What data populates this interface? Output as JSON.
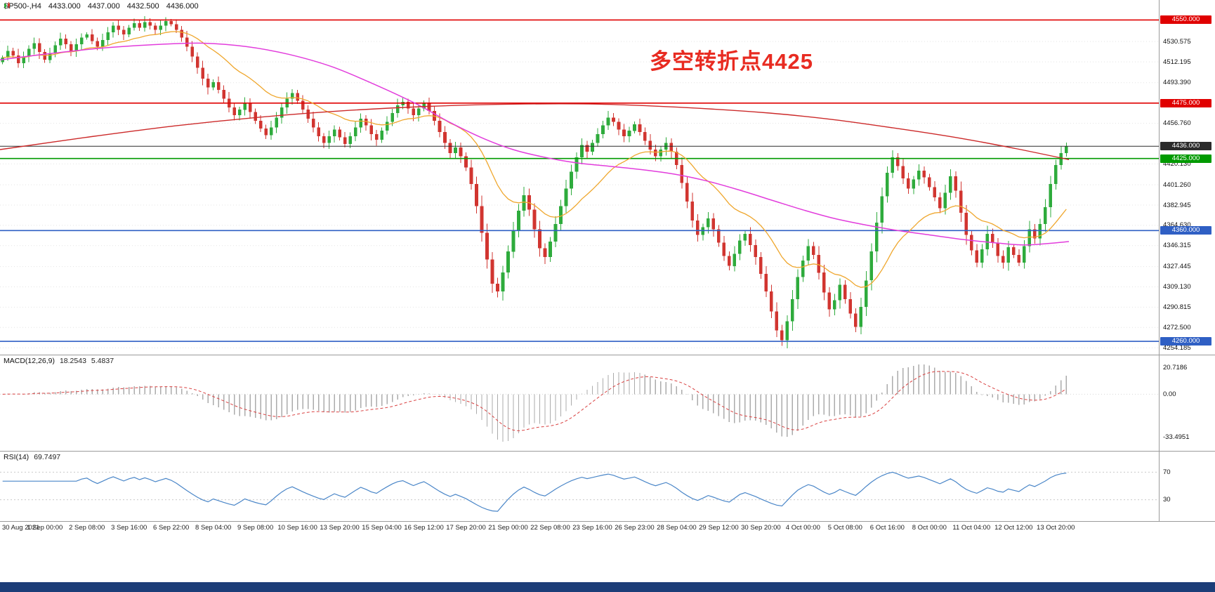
{
  "header": {
    "symbol_timeframe": "SP500-,H4",
    "open": "4433.000",
    "high": "4437.000",
    "low": "4432.500",
    "close": "4436.000"
  },
  "annotation": {
    "text": "多空转折点4425",
    "color": "#e82b21"
  },
  "bottom_bar": {
    "color": "#1c3d78"
  },
  "chart_data": {
    "type": "candlestick",
    "symbol": "SP500-",
    "timeframe": "H4",
    "quote": {
      "open": 4433.0,
      "high": 4437.0,
      "low": 4432.5,
      "close": 4436.0
    },
    "price_axis": {
      "min": 4248,
      "max": 4568,
      "grid_labels": [
        "4530.575",
        "4512.195",
        "4493.390",
        "4456.760",
        "4420.130",
        "4401.260",
        "4382.945",
        "4364.630",
        "4346.315",
        "4327.445",
        "4309.130",
        "4290.815",
        "4272.500",
        "4254.185"
      ]
    },
    "price_lines": [
      {
        "price": 4550,
        "label": "4550.000",
        "color": "#e00000",
        "type": "resistance"
      },
      {
        "price": 4475,
        "label": "4475.000",
        "color": "#e00000",
        "type": "resistance"
      },
      {
        "price": 4436,
        "label": "4436.000",
        "color": "#2b2b2b",
        "type": "current-price"
      },
      {
        "price": 4425,
        "label": "4425.000",
        "color": "#009a00",
        "type": "pivot"
      },
      {
        "price": 4360,
        "label": "4360.000",
        "color": "#2f5fc4",
        "type": "support"
      },
      {
        "price": 4260,
        "label": "4260.000",
        "color": "#2f5fc4",
        "type": "support"
      }
    ],
    "candles": {
      "first_open": 4512,
      "up_color": "#2eab3c",
      "down_color": "#d13530",
      "closes": [
        4516,
        4522,
        4518,
        4511,
        4517,
        4524,
        4529,
        4521,
        4514,
        4520,
        4527,
        4533,
        4528,
        4522,
        4528,
        4534,
        4537,
        4531,
        4526,
        4532,
        4539,
        4545,
        4541,
        4537,
        4543,
        4547,
        4543,
        4548,
        4545,
        4541,
        4545,
        4549,
        4546,
        4541,
        4534,
        4526,
        4517,
        4507,
        4497,
        4489,
        4494,
        4487,
        4479,
        4471,
        4464,
        4469,
        4475,
        4467,
        4459,
        4452,
        4446,
        4453,
        4462,
        4471,
        4479,
        4484,
        4477,
        4469,
        4461,
        4453,
        4445,
        4439,
        4445,
        4451,
        4444,
        4438,
        4445,
        4453,
        4461,
        4455,
        4447,
        4442,
        4450,
        4458,
        4466,
        4473,
        4476,
        4470,
        4464,
        4470,
        4475,
        4468,
        4459,
        4449,
        4439,
        4430,
        4435,
        4427,
        4417,
        4402,
        4382,
        4358,
        4334,
        4312,
        4305,
        4322,
        4341,
        4360,
        4378,
        4392,
        4379,
        4361,
        4344,
        4336,
        4350,
        4366,
        4382,
        4398,
        4413,
        4426,
        4437,
        4431,
        4439,
        4447,
        4455,
        4462,
        4458,
        4451,
        4445,
        4450,
        4456,
        4449,
        4441,
        4433,
        4427,
        4433,
        4439,
        4431,
        4419,
        4403,
        4386,
        4369,
        4356,
        4363,
        4371,
        4361,
        4349,
        4337,
        4328,
        4339,
        4351,
        4357,
        4347,
        4336,
        4321,
        4305,
        4287,
        4270,
        4261,
        4278,
        4298,
        4318,
        4333,
        4346,
        4338,
        4322,
        4304,
        4289,
        4297,
        4311,
        4298,
        4285,
        4273,
        4291,
        4315,
        4341,
        4367,
        4391,
        4412,
        4426,
        4418,
        4407,
        4398,
        4406,
        4414,
        4408,
        4399,
        4390,
        4380,
        4394,
        4409,
        4396,
        4376,
        4356,
        4342,
        4331,
        4343,
        4357,
        4349,
        4337,
        4331,
        4345,
        4338,
        4331,
        4346,
        4361,
        4353,
        4366,
        4381,
        4402,
        4419,
        4430,
        4436
      ]
    },
    "moving_averages": {
      "fast_orange": {
        "style": "ema",
        "period": 20,
        "color": "#efa72e"
      },
      "mid_magenta": {
        "color": "#e23ddc",
        "points": [
          [
            0,
            4514
          ],
          [
            0.05,
            4520
          ],
          [
            0.1,
            4525
          ],
          [
            0.15,
            4528
          ],
          [
            0.19,
            4529
          ],
          [
            0.23,
            4526
          ],
          [
            0.27,
            4519
          ],
          [
            0.31,
            4508
          ],
          [
            0.35,
            4492
          ],
          [
            0.39,
            4474
          ],
          [
            0.42,
            4458
          ],
          [
            0.45,
            4444
          ],
          [
            0.48,
            4433
          ],
          [
            0.51,
            4426
          ],
          [
            0.54,
            4421
          ],
          [
            0.57,
            4418
          ],
          [
            0.6,
            4415
          ],
          [
            0.63,
            4411
          ],
          [
            0.66,
            4405
          ],
          [
            0.69,
            4397
          ],
          [
            0.72,
            4388
          ],
          [
            0.75,
            4379
          ],
          [
            0.78,
            4371
          ],
          [
            0.81,
            4365
          ],
          [
            0.84,
            4360
          ],
          [
            0.87,
            4356
          ],
          [
            0.9,
            4352
          ],
          [
            0.93,
            4349
          ],
          [
            0.96,
            4347
          ],
          [
            1.0,
            4350
          ]
        ]
      },
      "slow_red": {
        "color": "#cc2a2a",
        "points": [
          [
            0,
            4433
          ],
          [
            0.08,
            4444
          ],
          [
            0.16,
            4454
          ],
          [
            0.24,
            4462
          ],
          [
            0.32,
            4468
          ],
          [
            0.4,
            4472
          ],
          [
            0.48,
            4474
          ],
          [
            0.56,
            4474
          ],
          [
            0.64,
            4471
          ],
          [
            0.72,
            4466
          ],
          [
            0.78,
            4460
          ],
          [
            0.84,
            4452
          ],
          [
            0.9,
            4443
          ],
          [
            0.95,
            4434
          ],
          [
            1.0,
            4424
          ]
        ]
      }
    },
    "time_labels": [
      "30 Aug 2021",
      "1 Sep 00:00",
      "2 Sep 08:00",
      "3 Sep 16:00",
      "6 Sep 22:00",
      "8 Sep 04:00",
      "9 Sep 08:00",
      "10 Sep 16:00",
      "13 Sep 20:00",
      "15 Sep 04:00",
      "16 Sep 12:00",
      "17 Sep 20:00",
      "21 Sep 00:00",
      "22 Sep 08:00",
      "23 Sep 16:00",
      "26 Sep 23:00",
      "28 Sep 04:00",
      "29 Sep 12:00",
      "30 Sep 20:00",
      "4 Oct 00:00",
      "5 Oct 08:00",
      "6 Oct 16:00",
      "8 Oct 00:00",
      "11 Oct 04:00",
      "12 Oct 12:00",
      "13 Oct 20:00"
    ],
    "macd": {
      "title": "MACD(12,26,9)",
      "value_main": "18.2543",
      "value_signal": "5.4837",
      "fast": 12,
      "slow": 26,
      "signal": 9,
      "axis_labels": [
        "20.7186",
        "0.00",
        "-33.4951"
      ],
      "axis_values": [
        20.7186,
        0,
        -33.4951
      ],
      "histogram_color": "#ababab",
      "signal_color": "#d94040"
    },
    "rsi": {
      "title": "RSI(14)",
      "value": "69.7497",
      "period": 14,
      "levels": [
        70,
        30
      ],
      "axis_labels": [
        "70",
        "30"
      ],
      "line_color": "#4a86c8"
    }
  }
}
